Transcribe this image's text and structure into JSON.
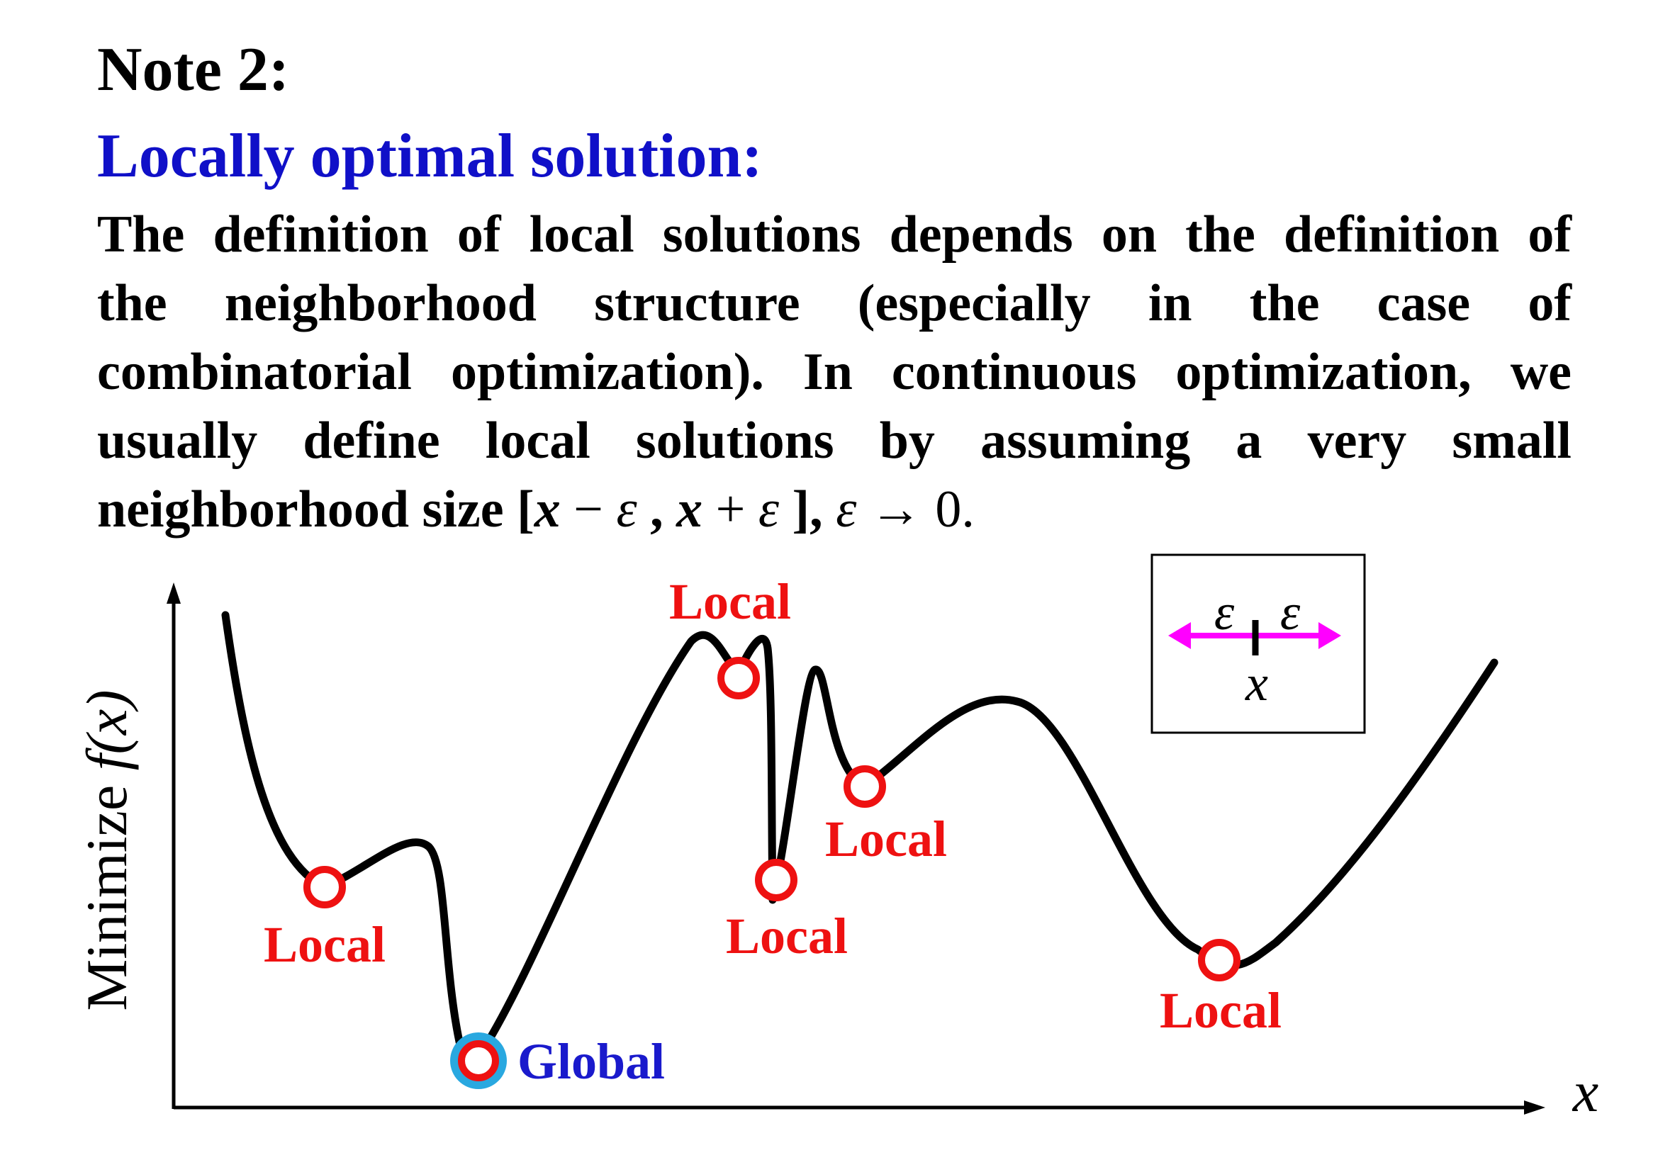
{
  "header": {
    "note_label": "Note 2:",
    "subtitle": "Locally optimal solution:"
  },
  "body": {
    "line1": "The definition of local solutions depends on the definition of",
    "line2": "the neighborhood structure (especially in the case of",
    "line3": "combinatorial optimization). In continuous optimization, we",
    "line4": "usually define local solutions by assuming a very small",
    "line5_text": "neighborhood size [",
    "math_x1": "x",
    "math_minus": " − ",
    "math_eps1": "ε",
    "math_comma": " , ",
    "math_x2": "x",
    "math_plus": " + ",
    "math_eps2": "ε",
    "math_close": " ],  ",
    "math_eps3": "ε",
    "math_arrow": " → 0."
  },
  "diagram": {
    "y_axis_label": "Minimize ",
    "y_axis_func": "f(x)",
    "x_axis_label": "x",
    "inset": {
      "eps_left": "ε",
      "eps_right": "ε",
      "x_label": "x"
    },
    "points": [
      {
        "label": "Local",
        "kind": "local"
      },
      {
        "label": "Global",
        "kind": "global"
      },
      {
        "label": "Local",
        "kind": "local"
      },
      {
        "label": "Local",
        "kind": "local"
      },
      {
        "label": "Local",
        "kind": "local"
      },
      {
        "label": "Local",
        "kind": "local"
      }
    ],
    "colors": {
      "curve": "#000000",
      "local_marker": "#ee1111",
      "local_label": "#ee1111",
      "global_label": "#1a1acc",
      "global_halo": "#29a8e0",
      "arrow": "#ff00ff"
    }
  }
}
